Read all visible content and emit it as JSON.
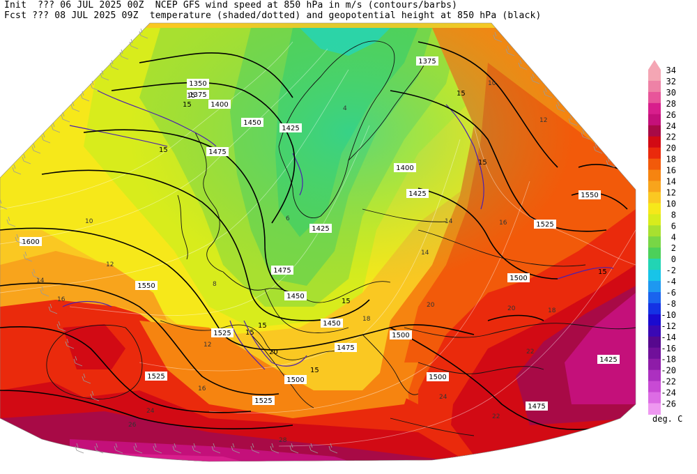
{
  "header": {
    "line1_left": "Init  ??? 06 JUL 2025 00Z",
    "line1_right": "NCEP GFS wind speed at 850 hPa in m/s (contours/barbs)",
    "line2_left": "Fcst ??? 08 JUL 2025 09Z",
    "line2_right": "temperature (shaded/dotted) and geopotential height at 850 hPa (black)"
  },
  "legend": {
    "unit": "deg. C",
    "levels": [
      {
        "value": "34",
        "color": "#f4a6b4"
      },
      {
        "value": "32",
        "color": "#ee82a6"
      },
      {
        "value": "30",
        "color": "#e8559a"
      },
      {
        "value": "28",
        "color": "#d81e8c"
      },
      {
        "value": "26",
        "color": "#c4107a"
      },
      {
        "value": "24",
        "color": "#a80a46"
      },
      {
        "value": "22",
        "color": "#d20a14"
      },
      {
        "value": "20",
        "color": "#ea2a0c"
      },
      {
        "value": "18",
        "color": "#f25a0a"
      },
      {
        "value": "16",
        "color": "#f68410"
      },
      {
        "value": "14",
        "color": "#f8a41c"
      },
      {
        "value": "12",
        "color": "#fac822"
      },
      {
        "value": "10",
        "color": "#f6e81a"
      },
      {
        "value": "8",
        "color": "#d8ec1c"
      },
      {
        "value": "6",
        "color": "#a8e030"
      },
      {
        "value": "4",
        "color": "#78d646"
      },
      {
        "value": "2",
        "color": "#4cd05a"
      },
      {
        "value": "0",
        "color": "#22d4b4"
      },
      {
        "value": "-2",
        "color": "#18c4e8"
      },
      {
        "value": "-4",
        "color": "#1e98f0"
      },
      {
        "value": "-6",
        "color": "#1a64ee"
      },
      {
        "value": "-8",
        "color": "#1432e4"
      },
      {
        "value": "-10",
        "color": "#1a0ad0"
      },
      {
        "value": "-12",
        "color": "#3a08b4"
      },
      {
        "value": "-14",
        "color": "#56088e"
      },
      {
        "value": "-16",
        "color": "#70109a"
      },
      {
        "value": "-18",
        "color": "#8e1ca8"
      },
      {
        "value": "-20",
        "color": "#ac30c0"
      },
      {
        "value": "-22",
        "color": "#c84ad4"
      },
      {
        "value": "-24",
        "color": "#dc6ce4"
      },
      {
        "value": "-26",
        "color": "#ee98f0"
      }
    ]
  },
  "height_labels": [
    "1350",
    "1375",
    "1400",
    "1425",
    "1450",
    "1475",
    "1500",
    "1525",
    "1550",
    "1600",
    "1375",
    "1400",
    "1425",
    "1425",
    "1450",
    "1475",
    "1500",
    "1525",
    "1550",
    "1450",
    "1475",
    "1500",
    "1525",
    "1525",
    "1475",
    "1500",
    "1425"
  ],
  "wind_labels": [
    "15",
    "15",
    "15",
    "15",
    "15",
    "15",
    "15",
    "15",
    "15",
    "20",
    "15"
  ],
  "temp_labels": [
    "10",
    "12",
    "14",
    "16",
    "12",
    "14",
    "16",
    "18",
    "20",
    "22",
    "24",
    "26",
    "28",
    "8",
    "6",
    "4",
    "10",
    "12",
    "14",
    "16",
    "18",
    "20",
    "22",
    "24"
  ]
}
